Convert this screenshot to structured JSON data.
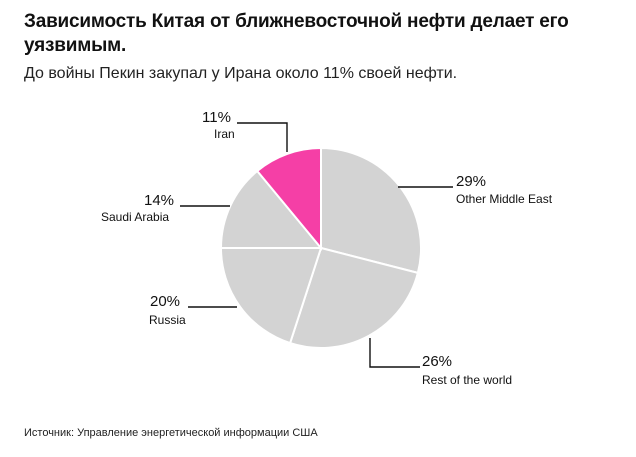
{
  "header": {
    "title": "Зависимость Китая от ближневосточной нефти делает его уязвимым.",
    "subtitle": "До войны Пекин закупал у Ирана около 11% своей нефти."
  },
  "footer": {
    "source": "Источник: Управление энергетической информации США"
  },
  "chart_data": {
    "type": "pie",
    "title": "",
    "unit": "%",
    "slices": [
      {
        "label": "Other Middle East",
        "value": 29,
        "value_label": "29%",
        "color": "#d3d3d3"
      },
      {
        "label": "Rest of the world",
        "value": 26,
        "value_label": "26%",
        "color": "#d3d3d3"
      },
      {
        "label": "Russia",
        "value": 20,
        "value_label": "20%",
        "color": "#d3d3d3"
      },
      {
        "label": "Saudi Arabia",
        "value": 14,
        "value_label": "14%",
        "color": "#d3d3d3"
      },
      {
        "label": "Iran",
        "value": 11,
        "value_label": "11%",
        "color": "#f53fa6"
      }
    ],
    "slice_border_color": "#ffffff",
    "leader_line_color": "#111111"
  }
}
